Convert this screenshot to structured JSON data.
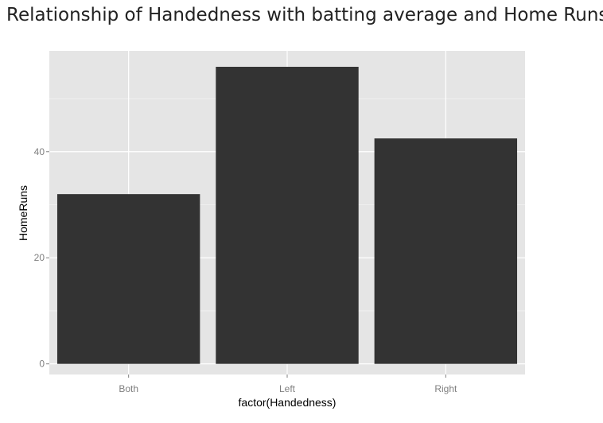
{
  "chart_data": {
    "type": "bar",
    "title": "Relationship of Handedness with batting average and Home Runs",
    "xlabel": "factor(Handedness)",
    "ylabel": "HomeRuns",
    "categories": [
      "Both",
      "Left",
      "Right"
    ],
    "values": [
      32,
      56,
      42.5
    ],
    "yticks": [
      0,
      20,
      40
    ],
    "ylim": [
      -2,
      59
    ],
    "bar_color": "#333333",
    "panel_color": "#e5e5e5",
    "grid": true,
    "legend": "none"
  }
}
